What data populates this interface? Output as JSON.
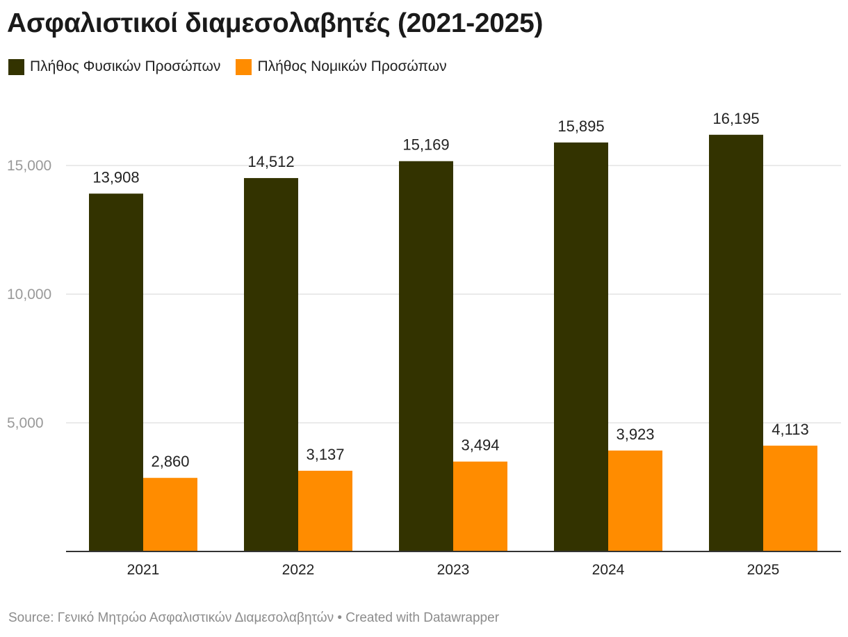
{
  "chart_data": {
    "type": "bar",
    "title": "Ασφαλιστικοί διαμεσολαβητές (2021-2025)",
    "categories": [
      "2021",
      "2022",
      "2023",
      "2024",
      "2025"
    ],
    "series": [
      {
        "name": "Πλήθος Φυσικών Προσώπων",
        "color": "#333300",
        "values": [
          13908,
          14512,
          15169,
          15895,
          16195
        ],
        "labels": [
          "13,908",
          "14,512",
          "15,169",
          "15,895",
          "16,195"
        ]
      },
      {
        "name": "Πλήθος Νομικών Προσώπων",
        "color": "#ff8c00",
        "values": [
          2860,
          3137,
          3494,
          3923,
          4113
        ],
        "labels": [
          "2,860",
          "3,137",
          "3,494",
          "3,923",
          "4,113"
        ]
      }
    ],
    "ylim": [
      0,
      18000
    ],
    "yticks": [
      5000,
      10000,
      15000
    ],
    "ytick_labels": [
      "5,000",
      "10,000",
      "15,000"
    ],
    "grid": true,
    "legend": "top-left",
    "xlabel": "",
    "ylabel": ""
  },
  "footer": {
    "source_text": "Source: Γενικό Μητρώο Ασφαλιστικών Διαμεσολαβητών • Created with Datawrapper"
  }
}
